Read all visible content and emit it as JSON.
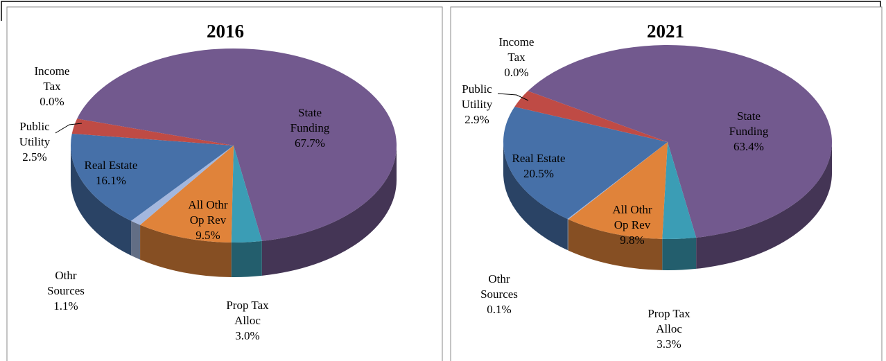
{
  "chart_data": [
    {
      "type": "pie",
      "title": "2016",
      "categories": [
        "State Funding",
        "Prop Tax Alloc",
        "All Othr Op Rev",
        "Othr Sources",
        "Real Estate",
        "Public Utility",
        "Income Tax"
      ],
      "values": [
        67.7,
        3.0,
        9.5,
        1.1,
        16.1,
        2.5,
        0.0
      ],
      "value_labels": [
        "67.7%",
        "3.0%",
        "9.5%",
        "1.1%",
        "16.1%",
        "2.5%",
        "0.0%"
      ],
      "colors": [
        "#72598e",
        "#3b9db5",
        "#e0833a",
        "#a3b7de",
        "#4670a8",
        "#bf4b45",
        "#8eb04a"
      ]
    },
    {
      "type": "pie",
      "title": "2021",
      "categories": [
        "State Funding",
        "Prop Tax Alloc",
        "All Othr Op Rev",
        "Othr Sources",
        "Real Estate",
        "Public Utility",
        "Income Tax"
      ],
      "values": [
        63.4,
        3.3,
        9.8,
        0.1,
        20.5,
        2.9,
        0.0
      ],
      "value_labels": [
        "63.4%",
        "3.3%",
        "9.8%",
        "0.1%",
        "20.5%",
        "2.9%",
        "0.0%"
      ],
      "colors": [
        "#72598e",
        "#3b9db5",
        "#e0833a",
        "#a3b7de",
        "#4670a8",
        "#bf4b45",
        "#8eb04a"
      ]
    }
  ]
}
